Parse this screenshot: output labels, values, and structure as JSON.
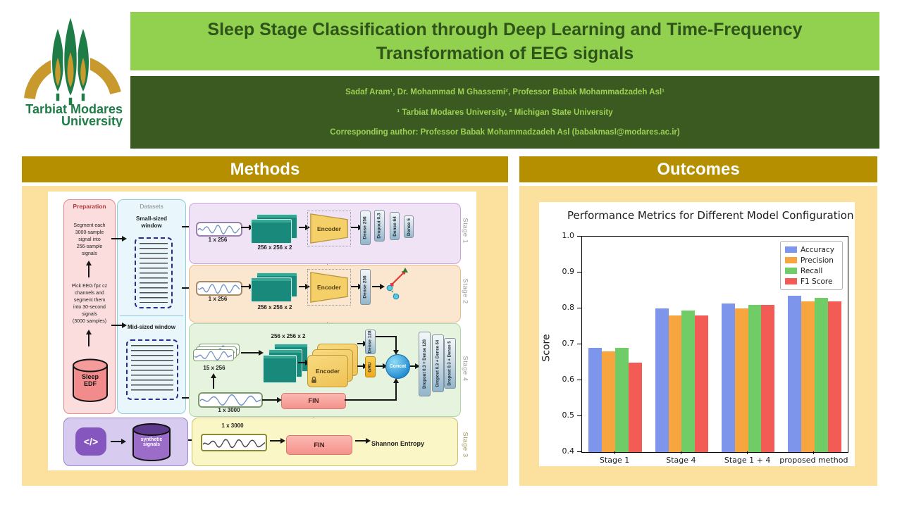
{
  "header": {
    "title_line1": "Sleep Stage Classification through Deep Learning and Time-Frequency",
    "title_line2": "Transformation of EEG signals",
    "authors_line": "Sadaf Aram¹, Dr. Mohammad M Ghassemi², Professor Babak Mohammadzadeh Asl¹",
    "affiliations_line": "¹ Tarbiat Modares University, ² Michigan State University",
    "corresponding_line": "Corresponding author: Professor Babak Mohammadzadeh Asl (babakmasl@modares.ac.ir)"
  },
  "logo": {
    "line1": "Tarbiat Modares",
    "line2": "University"
  },
  "sections": {
    "methods": "Methods",
    "outcomes": "Outcomes"
  },
  "methods": {
    "preparation": {
      "title": "Preparation",
      "step_top": "Segment each\n3000-sample\nsignal into\n256-sample\nsignals",
      "step_bottom": "Pick EEG fpz cz\nchannels and\nsegment them\ninto 30-second\nsignals\n(3000 samples)",
      "db": "Sleep\nEDF"
    },
    "datasets": {
      "title": "Datasets",
      "small": "Small-sized\nwindow",
      "mid": "Mid-sized window"
    },
    "stage1": {
      "label": "Stage 1",
      "input": "1 x 256",
      "tf": "256 x 256 x 2",
      "encoder": "Encoder",
      "layers": [
        "Dense 256",
        "Dropout 0.3",
        "Dense 64",
        "Dense 5"
      ]
    },
    "stage2": {
      "label": "Stage 2",
      "input": "1 x 256",
      "tf": "256 x 256 x 2",
      "encoder": "Encoder",
      "dense": "Dense 256"
    },
    "stage4": {
      "label": "Stage 4",
      "windows": "15 x 256",
      "raw": "1 x 3000",
      "tf": "256 x 256 x 2",
      "encoder": "Encoder",
      "dense": "Dense 128",
      "gru": "GRU",
      "concat": "Concat",
      "fin": "FIN",
      "layers": [
        "Dropout 0.3 + Dense 128",
        "Dropout 0.3 + Dense 64",
        "Dropout 0.3 + Dense 5"
      ]
    },
    "stage3": {
      "label": "Stage 3",
      "code": "</>",
      "db": "synthetic\nsignals",
      "input": "1 x 3000",
      "fin": "FIN",
      "entropy": "Shannon Entropy"
    }
  },
  "chart_data": {
    "type": "bar",
    "title": "Performance Metrics for Different Model Configuration",
    "ylabel": "Score",
    "xlabel": "",
    "categories": [
      "Stage 1",
      "Stage 4",
      "Stage 1 + 4",
      "proposed method"
    ],
    "series": [
      {
        "name": "Accuracy",
        "color": "#7D96EC",
        "values": [
          0.69,
          0.8,
          0.813,
          0.835
        ]
      },
      {
        "name": "Precision",
        "color": "#F7A63F",
        "values": [
          0.68,
          0.78,
          0.8,
          0.82
        ]
      },
      {
        "name": "Recall",
        "color": "#6FCC66",
        "values": [
          0.69,
          0.795,
          0.81,
          0.83
        ]
      },
      {
        "name": "F1 Score",
        "color": "#F25C54",
        "values": [
          0.65,
          0.78,
          0.81,
          0.82
        ]
      }
    ],
    "ylim": [
      0.4,
      1.0
    ],
    "yticks": [
      0.4,
      0.5,
      0.6,
      0.7,
      0.8,
      0.9,
      1.0
    ],
    "grid": false,
    "legend_position": "upper right"
  },
  "colors": {
    "title_bg": "#92D050",
    "title_text": "#2F5419",
    "authors_bg": "#3A5A22",
    "authors_text": "#9CD152",
    "section_header_bg": "#B58F00",
    "panel_bg": "#FBE09E"
  }
}
